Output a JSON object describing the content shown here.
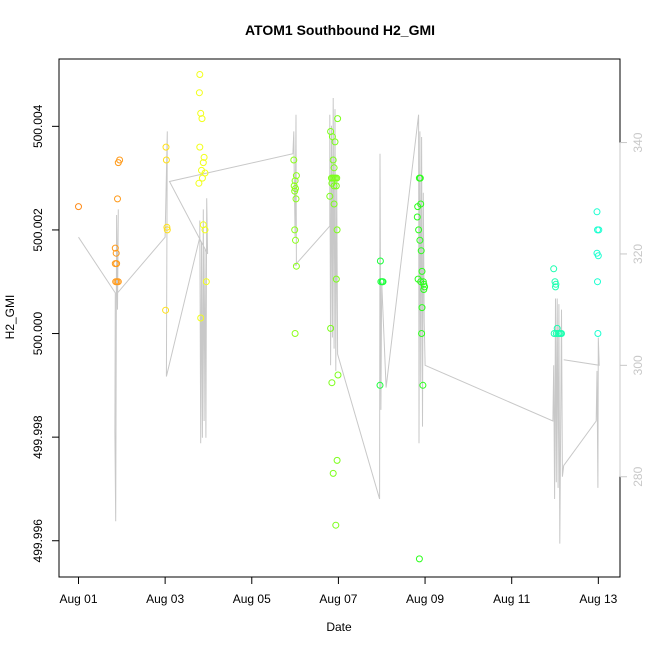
{
  "chart_data": {
    "type": "scatter",
    "title": "ATOM1 Southbound H2_GMI",
    "xlabel": "Date",
    "ylabel": "H2_GMI",
    "x_ticks": [
      "Aug 01",
      "Aug 03",
      "Aug 05",
      "Aug 07",
      "Aug 09",
      "Aug 11",
      "Aug 13"
    ],
    "x_tick_days": [
      1,
      3,
      5,
      7,
      9,
      11,
      13
    ],
    "xlim": [
      0.55,
      13.5
    ],
    "ylim": [
      499.9953,
      500.0053
    ],
    "y_ticks": [
      499.996,
      499.998,
      500.0,
      500.002,
      500.004
    ],
    "y_tick_labels": [
      "499.996",
      "499.998",
      "500.000",
      "500.002",
      "500.004"
    ],
    "right_axis": {
      "ylim": [
        262,
        355
      ],
      "ticks": [
        280,
        300,
        320,
        340
      ],
      "tick_labels": [
        "280",
        "300",
        "320",
        "340"
      ],
      "color": "#c8c8c8"
    },
    "grid": false,
    "legend": "none",
    "points": [
      {
        "x": 1.0,
        "y": 500.00245,
        "color": "#FF8C1A"
      },
      {
        "x": 1.85,
        "y": 500.00165,
        "color": "#FF9A1A"
      },
      {
        "x": 1.87,
        "y": 500.00155,
        "color": "#FF9A1A"
      },
      {
        "x": 1.85,
        "y": 500.00135,
        "color": "#FF9A1A"
      },
      {
        "x": 1.88,
        "y": 500.00135,
        "color": "#FF9A1A"
      },
      {
        "x": 1.86,
        "y": 500.001,
        "color": "#FF9A1A"
      },
      {
        "x": 1.89,
        "y": 500.001,
        "color": "#FF9A1A"
      },
      {
        "x": 1.92,
        "y": 500.001,
        "color": "#FF9A1A"
      },
      {
        "x": 1.9,
        "y": 500.0026,
        "color": "#FF9A1A"
      },
      {
        "x": 1.92,
        "y": 500.0033,
        "color": "#FF9A1A"
      },
      {
        "x": 1.95,
        "y": 500.00335,
        "color": "#FF9A1A"
      },
      {
        "x": 3.02,
        "y": 500.0036,
        "color": "#FFE01A"
      },
      {
        "x": 3.03,
        "y": 500.00335,
        "color": "#FFE01A"
      },
      {
        "x": 3.04,
        "y": 500.00205,
        "color": "#FFE01A"
      },
      {
        "x": 3.05,
        "y": 500.002,
        "color": "#FFE01A"
      },
      {
        "x": 3.01,
        "y": 500.00045,
        "color": "#FFE01A"
      },
      {
        "x": 3.8,
        "y": 500.005,
        "color": "#F2FF1A"
      },
      {
        "x": 3.79,
        "y": 500.00465,
        "color": "#F2FF1A"
      },
      {
        "x": 3.82,
        "y": 500.00425,
        "color": "#F2FF1A"
      },
      {
        "x": 3.85,
        "y": 500.00415,
        "color": "#F2FF1A"
      },
      {
        "x": 3.8,
        "y": 500.0036,
        "color": "#F2FF1A"
      },
      {
        "x": 3.88,
        "y": 500.0033,
        "color": "#F2FF1A"
      },
      {
        "x": 3.9,
        "y": 500.0034,
        "color": "#F2FF1A"
      },
      {
        "x": 3.84,
        "y": 500.00315,
        "color": "#F2FF1A"
      },
      {
        "x": 3.92,
        "y": 500.0031,
        "color": "#F2FF1A"
      },
      {
        "x": 3.86,
        "y": 500.003,
        "color": "#F2FF1A"
      },
      {
        "x": 3.78,
        "y": 500.0029,
        "color": "#F2FF1A"
      },
      {
        "x": 3.88,
        "y": 500.0021,
        "color": "#F2FF1A"
      },
      {
        "x": 3.92,
        "y": 500.002,
        "color": "#F2FF1A"
      },
      {
        "x": 3.95,
        "y": 500.001,
        "color": "#F2FF1A"
      },
      {
        "x": 3.82,
        "y": 500.0003,
        "color": "#F2FF1A"
      },
      {
        "x": 5.97,
        "y": 500.00335,
        "color": "#8CFF1A"
      },
      {
        "x": 6.03,
        "y": 500.00305,
        "color": "#8CFF1A"
      },
      {
        "x": 6.0,
        "y": 500.00295,
        "color": "#8CFF1A"
      },
      {
        "x": 5.98,
        "y": 500.00285,
        "color": "#8CFF1A"
      },
      {
        "x": 6.01,
        "y": 500.0028,
        "color": "#8CFF1A"
      },
      {
        "x": 5.99,
        "y": 500.00275,
        "color": "#8CFF1A"
      },
      {
        "x": 6.02,
        "y": 500.0026,
        "color": "#8CFF1A"
      },
      {
        "x": 5.99,
        "y": 500.002,
        "color": "#8CFF1A"
      },
      {
        "x": 6.01,
        "y": 500.0018,
        "color": "#8CFF1A"
      },
      {
        "x": 6.03,
        "y": 500.0013,
        "color": "#8CFF1A"
      },
      {
        "x": 6.0,
        "y": 500.0,
        "color": "#8CFF1A"
      },
      {
        "x": 6.82,
        "y": 500.0039,
        "color": "#7CFF1A"
      },
      {
        "x": 6.86,
        "y": 500.0038,
        "color": "#7CFF1A"
      },
      {
        "x": 6.92,
        "y": 500.0037,
        "color": "#7CFF1A"
      },
      {
        "x": 6.98,
        "y": 500.00415,
        "color": "#7CFF1A"
      },
      {
        "x": 6.88,
        "y": 500.00335,
        "color": "#7CFF1A"
      },
      {
        "x": 6.9,
        "y": 500.0032,
        "color": "#7CFF1A"
      },
      {
        "x": 6.84,
        "y": 500.003,
        "color": "#7CFF1A"
      },
      {
        "x": 6.87,
        "y": 500.003,
        "color": "#7CFF1A"
      },
      {
        "x": 6.9,
        "y": 500.003,
        "color": "#7CFF1A"
      },
      {
        "x": 6.93,
        "y": 500.003,
        "color": "#7CFF1A"
      },
      {
        "x": 6.96,
        "y": 500.003,
        "color": "#7CFF1A"
      },
      {
        "x": 6.85,
        "y": 500.0029,
        "color": "#7CFF1A"
      },
      {
        "x": 6.9,
        "y": 500.00285,
        "color": "#7CFF1A"
      },
      {
        "x": 6.95,
        "y": 500.00285,
        "color": "#7CFF1A"
      },
      {
        "x": 6.8,
        "y": 500.00265,
        "color": "#7CFF1A"
      },
      {
        "x": 6.9,
        "y": 500.0025,
        "color": "#7CFF1A"
      },
      {
        "x": 6.97,
        "y": 500.002,
        "color": "#7CFF1A"
      },
      {
        "x": 6.95,
        "y": 500.00105,
        "color": "#7CFF1A"
      },
      {
        "x": 6.82,
        "y": 500.0001,
        "color": "#7CFF1A"
      },
      {
        "x": 6.99,
        "y": 499.9992,
        "color": "#7CFF1A"
      },
      {
        "x": 6.85,
        "y": 499.99905,
        "color": "#7CFF1A"
      },
      {
        "x": 6.97,
        "y": 499.99755,
        "color": "#7CFF1A"
      },
      {
        "x": 6.88,
        "y": 499.9973,
        "color": "#7CFF1A"
      },
      {
        "x": 6.94,
        "y": 499.9963,
        "color": "#7CFF1A"
      },
      {
        "x": 7.97,
        "y": 500.0014,
        "color": "#1AFF3A"
      },
      {
        "x": 7.98,
        "y": 500.001,
        "color": "#1AFF3A"
      },
      {
        "x": 8.01,
        "y": 500.001,
        "color": "#1AFF3A"
      },
      {
        "x": 8.03,
        "y": 500.001,
        "color": "#1AFF3A"
      },
      {
        "x": 7.96,
        "y": 499.999,
        "color": "#1AFF3A"
      },
      {
        "x": 8.87,
        "y": 500.003,
        "color": "#2AFF1A"
      },
      {
        "x": 8.89,
        "y": 500.003,
        "color": "#2AFF1A"
      },
      {
        "x": 8.83,
        "y": 500.00245,
        "color": "#2AFF1A"
      },
      {
        "x": 8.9,
        "y": 500.0025,
        "color": "#2AFF1A"
      },
      {
        "x": 8.82,
        "y": 500.00225,
        "color": "#2AFF1A"
      },
      {
        "x": 8.85,
        "y": 500.002,
        "color": "#2AFF1A"
      },
      {
        "x": 8.88,
        "y": 500.0018,
        "color": "#2AFF1A"
      },
      {
        "x": 8.91,
        "y": 500.0016,
        "color": "#2AFF1A"
      },
      {
        "x": 8.93,
        "y": 500.0012,
        "color": "#2AFF1A"
      },
      {
        "x": 8.84,
        "y": 500.00105,
        "color": "#2AFF1A"
      },
      {
        "x": 8.9,
        "y": 500.001,
        "color": "#2AFF1A"
      },
      {
        "x": 8.96,
        "y": 500.001,
        "color": "#2AFF1A"
      },
      {
        "x": 8.97,
        "y": 500.00095,
        "color": "#2AFF1A"
      },
      {
        "x": 8.99,
        "y": 500.0009,
        "color": "#2AFF1A"
      },
      {
        "x": 8.97,
        "y": 500.00085,
        "color": "#2AFF1A"
      },
      {
        "x": 8.93,
        "y": 500.0005,
        "color": "#2AFF1A"
      },
      {
        "x": 8.92,
        "y": 500.0,
        "color": "#2AFF1A"
      },
      {
        "x": 8.95,
        "y": 499.999,
        "color": "#2AFF1A"
      },
      {
        "x": 8.87,
        "y": 499.99565,
        "color": "#2AFF1A"
      },
      {
        "x": 11.97,
        "y": 500.00125,
        "color": "#1AFFB0"
      },
      {
        "x": 12.0,
        "y": 500.001,
        "color": "#1AFFB0"
      },
      {
        "x": 12.02,
        "y": 500.00095,
        "color": "#1AFFB0"
      },
      {
        "x": 12.01,
        "y": 500.0009,
        "color": "#1AFFB0"
      },
      {
        "x": 12.05,
        "y": 500.0001,
        "color": "#1AFFB0"
      },
      {
        "x": 11.98,
        "y": 500.0,
        "color": "#1AFFB0"
      },
      {
        "x": 12.03,
        "y": 500.0,
        "color": "#1AFFB0"
      },
      {
        "x": 12.07,
        "y": 500.0,
        "color": "#1AFFB0"
      },
      {
        "x": 12.1,
        "y": 500.0,
        "color": "#1AFFB0"
      },
      {
        "x": 12.13,
        "y": 500.0,
        "color": "#1AFFB0"
      },
      {
        "x": 12.15,
        "y": 500.0,
        "color": "#1AFFB0"
      },
      {
        "x": 12.97,
        "y": 500.00235,
        "color": "#1AFFD0"
      },
      {
        "x": 12.98,
        "y": 500.002,
        "color": "#1AFFD0"
      },
      {
        "x": 13.01,
        "y": 500.002,
        "color": "#1AFFD0"
      },
      {
        "x": 12.97,
        "y": 500.00155,
        "color": "#1AFFD0"
      },
      {
        "x": 13.0,
        "y": 500.0015,
        "color": "#1AFFD0"
      },
      {
        "x": 12.98,
        "y": 500.001,
        "color": "#1AFFD0"
      },
      {
        "x": 12.99,
        "y": 500.0,
        "color": "#1AFFD0"
      }
    ],
    "secondary_line": {
      "color": "#c8c8c8",
      "axis": "right",
      "points": [
        [
          1.0,
          323
        ],
        [
          1.85,
          313
        ],
        [
          1.84,
          288
        ],
        [
          1.86,
          272
        ],
        [
          1.88,
          327
        ],
        [
          1.9,
          310
        ],
        [
          1.92,
          328
        ],
        [
          1.9,
          313
        ],
        [
          3.0,
          323
        ],
        [
          3.05,
          342
        ],
        [
          3.03,
          298
        ],
        [
          3.8,
          323
        ],
        [
          3.8,
          326
        ],
        [
          3.82,
          286
        ],
        [
          3.84,
          322
        ],
        [
          3.86,
          287
        ],
        [
          3.88,
          328
        ],
        [
          3.9,
          290
        ],
        [
          3.92,
          321
        ],
        [
          3.94,
          287
        ],
        [
          3.96,
          330
        ],
        [
          3.98,
          320
        ],
        [
          3.1,
          333
        ],
        [
          5.95,
          338
        ],
        [
          5.97,
          342
        ],
        [
          5.98,
          335
        ],
        [
          6.0,
          323
        ],
        [
          6.02,
          345
        ],
        [
          6.03,
          318
        ],
        [
          6.0,
          318
        ],
        [
          6.8,
          325
        ],
        [
          6.8,
          345
        ],
        [
          6.82,
          300
        ],
        [
          6.84,
          343
        ],
        [
          6.86,
          305
        ],
        [
          6.88,
          348
        ],
        [
          6.9,
          303
        ],
        [
          6.92,
          346
        ],
        [
          6.94,
          299
        ],
        [
          6.96,
          333
        ],
        [
          6.98,
          302
        ],
        [
          7.95,
          276
        ],
        [
          7.96,
          338
        ],
        [
          7.98,
          292
        ],
        [
          8.0,
          315
        ],
        [
          8.1,
          296
        ],
        [
          8.85,
          345
        ],
        [
          8.86,
          286
        ],
        [
          8.88,
          342
        ],
        [
          8.9,
          297
        ],
        [
          8.92,
          341
        ],
        [
          8.94,
          289
        ],
        [
          8.96,
          331
        ],
        [
          8.98,
          308
        ],
        [
          9.0,
          300
        ],
        [
          11.95,
          290
        ],
        [
          11.97,
          300
        ],
        [
          11.99,
          276
        ],
        [
          12.01,
          312
        ],
        [
          12.03,
          279
        ],
        [
          12.05,
          312
        ],
        [
          12.07,
          278
        ],
        [
          12.09,
          311
        ],
        [
          12.11,
          268
        ],
        [
          12.13,
          290
        ],
        [
          12.15,
          310
        ],
        [
          12.17,
          280
        ],
        [
          12.2,
          282
        ],
        [
          12.95,
          290
        ],
        [
          12.97,
          299
        ],
        [
          12.99,
          278
        ],
        [
          13.0,
          305
        ],
        [
          13.02,
          300
        ],
        [
          12.2,
          301
        ]
      ]
    }
  }
}
